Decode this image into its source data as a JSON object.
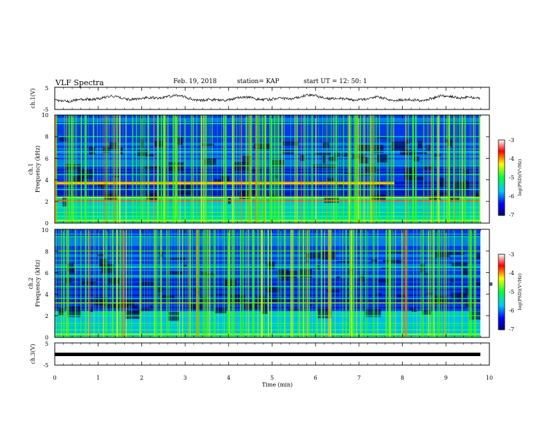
{
  "header": {
    "title": "VLF Spectra",
    "date": "Feb. 19, 2018",
    "station": "station= KAP",
    "start": "start  UT =   12: 50: 1"
  },
  "chart_data": [
    {
      "type": "line",
      "panel": "ch1-waveform",
      "ylabel": "ch.1(V)",
      "ylim": [
        -5,
        5
      ],
      "yticks": [
        "5",
        "-5"
      ],
      "xlim": [
        0,
        10
      ]
    },
    {
      "type": "heatmap",
      "panel": "ch1-spectrogram",
      "ylabel_line1": "ch.1",
      "ylabel_line2": "Frequency  (kHz)",
      "ylim": [
        0,
        10
      ],
      "yticks": [
        "0",
        "2",
        "4",
        "6",
        "8",
        "10"
      ],
      "xlim": [
        0,
        10
      ],
      "colorbar": {
        "label": "log(PSD)(V²/Hz)",
        "range": [
          -7,
          -3
        ],
        "ticks": [
          "-3",
          "-4",
          "-5",
          "-6",
          "-7"
        ]
      }
    },
    {
      "type": "heatmap",
      "panel": "ch2-spectrogram",
      "ylabel_line1": "ch.2",
      "ylabel_line2": "Frequency  (kHz)",
      "ylim": [
        0,
        10
      ],
      "yticks": [
        "0",
        "2",
        "4",
        "6",
        "8",
        "10"
      ],
      "xlim": [
        0,
        10
      ],
      "colorbar": {
        "label": "log(PSD)(V²/Hz)",
        "range": [
          -7,
          -3
        ],
        "ticks": [
          "-3",
          "-4",
          "-5",
          "-6",
          "-7"
        ]
      }
    },
    {
      "type": "line",
      "panel": "ch3-waveform",
      "ylabel": "ch.3(V)",
      "ylim": [
        -5,
        5
      ],
      "yticks": [
        "5",
        "-5"
      ],
      "xlim": [
        0,
        10
      ],
      "xlabel": "Time  (min)",
      "xticks": [
        "0",
        "1",
        "2",
        "3",
        "4",
        "5",
        "6",
        "7",
        "8",
        "9",
        "10"
      ]
    }
  ]
}
